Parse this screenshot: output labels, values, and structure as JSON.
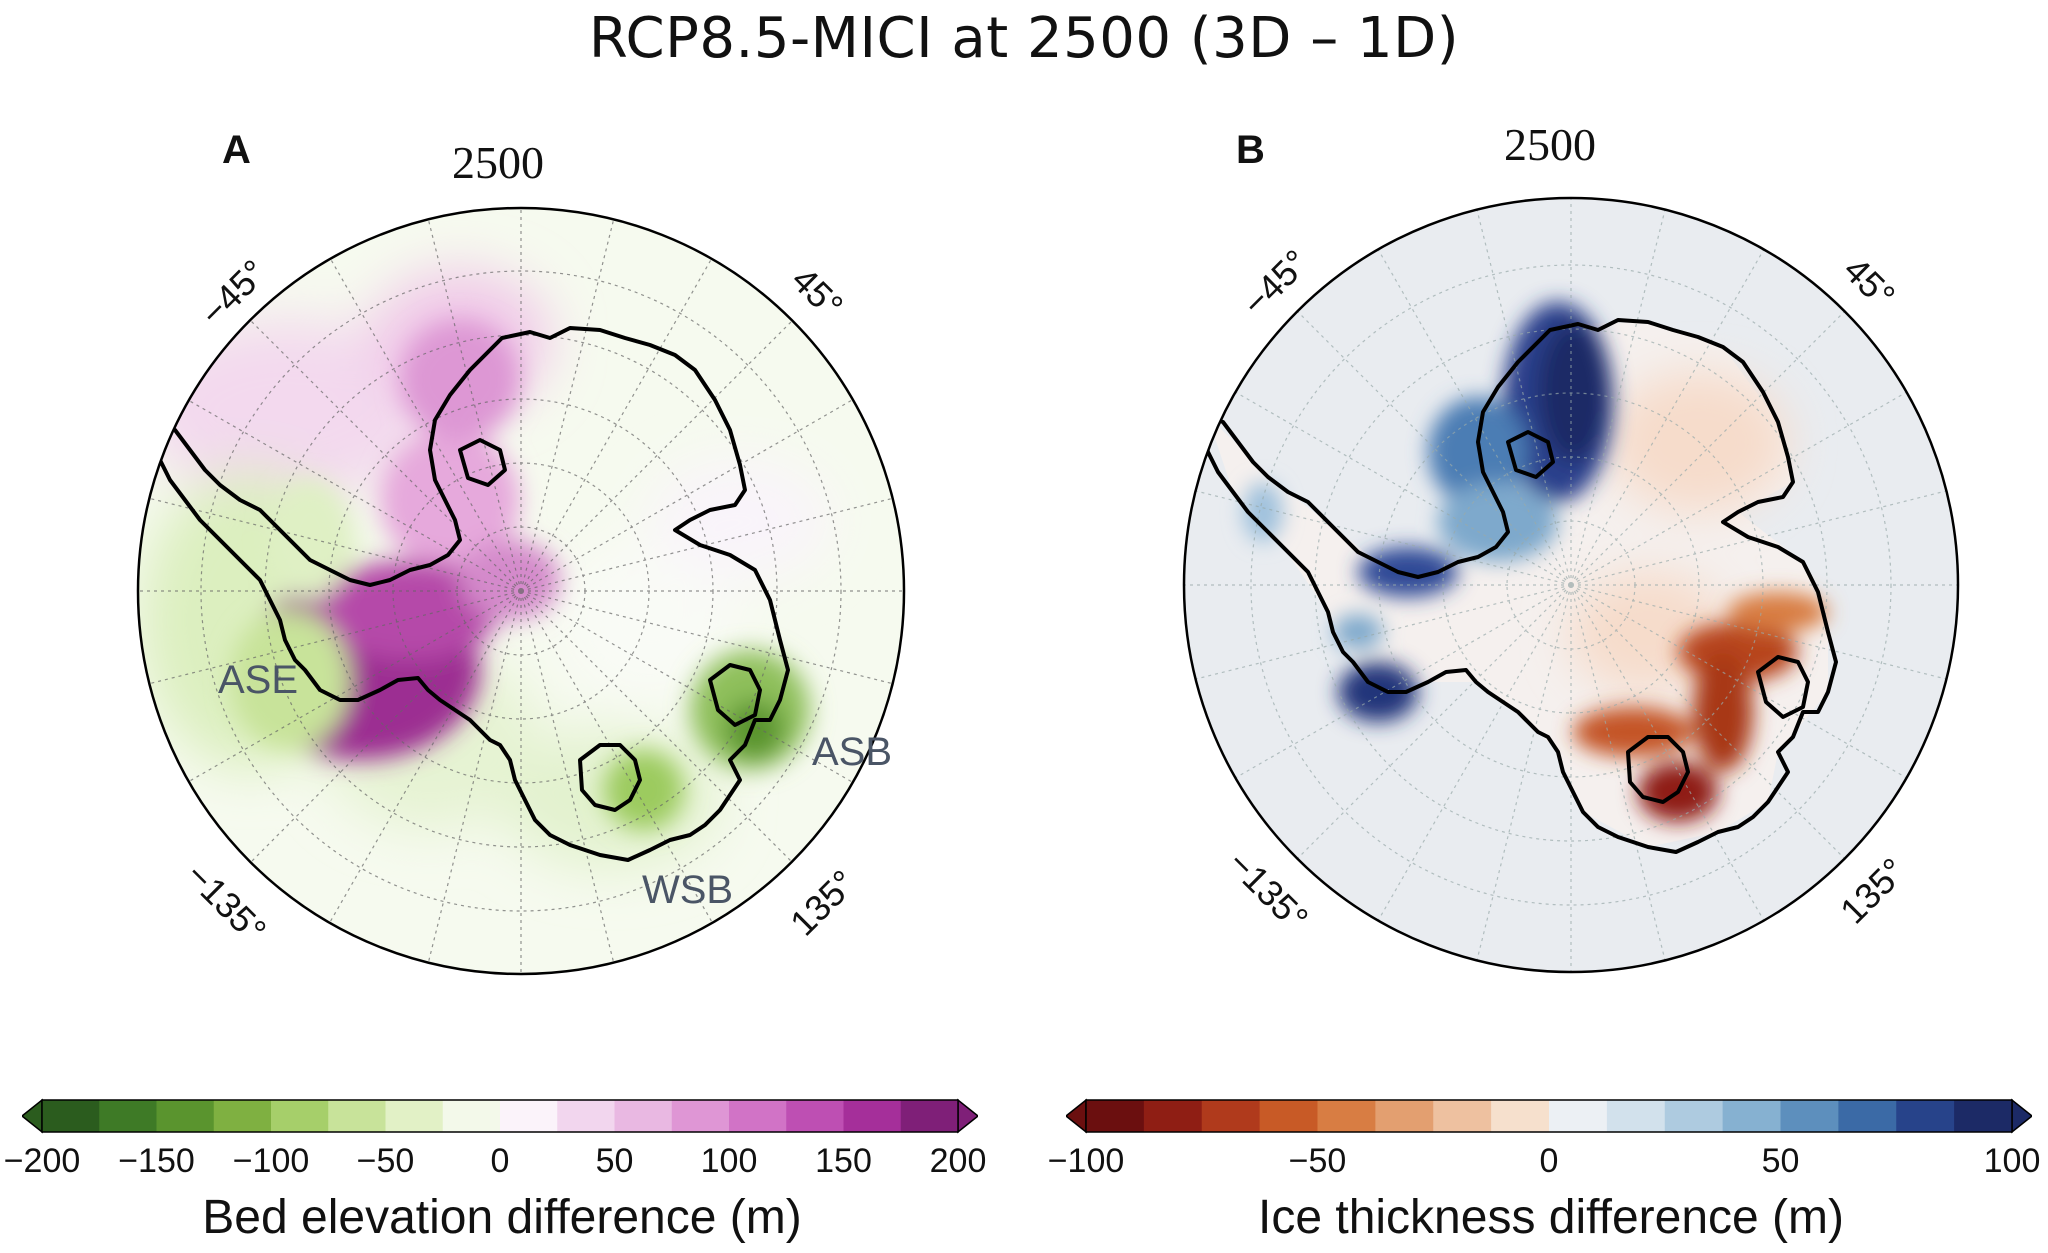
{
  "title": "RCP8.5-MICI at 2500 (3D – 1D)",
  "panels": {
    "a": {
      "letter": "A",
      "year": "2500",
      "lon_labels": [
        "−45°",
        "45°",
        "−135°",
        "135°"
      ],
      "regions": [
        "ASE",
        "ASB",
        "WSB"
      ],
      "colorbar": {
        "title": "Bed elevation difference (m)",
        "ticks": [
          "−200",
          "−150",
          "−100",
          "−50",
          "0",
          "50",
          "100",
          "150",
          "200"
        ],
        "colors": [
          "#2b5c1e",
          "#3e7a26",
          "#5a942e",
          "#7fb041",
          "#a6cf6a",
          "#c8e39a",
          "#e2f1c6",
          "#f3f9ea",
          "#fbf3fa",
          "#f2d6ee",
          "#e9b8e2",
          "#df96d5",
          "#d173c6",
          "#be4fb3",
          "#a52f9a",
          "#7f1f78"
        ],
        "range": [
          -200,
          200
        ]
      }
    },
    "b": {
      "letter": "B",
      "year": "2500",
      "lon_labels": [
        "−45°",
        "45°",
        "−135°",
        "135°"
      ],
      "colorbar": {
        "title": "Ice thickness difference (m)",
        "ticks": [
          "−100",
          "−50",
          "0",
          "50",
          "100"
        ],
        "colors": [
          "#6b0f0f",
          "#8f1e14",
          "#b03a1c",
          "#c85a26",
          "#d87d43",
          "#e39f70",
          "#eec1a0",
          "#f6e0cd",
          "#ecf0f4",
          "#d2e1ec",
          "#aecbe0",
          "#86b1d1",
          "#5d8fbd",
          "#3b6aa6",
          "#27438a",
          "#1c2a66"
        ],
        "range": [
          -100,
          100
        ]
      }
    }
  }
}
